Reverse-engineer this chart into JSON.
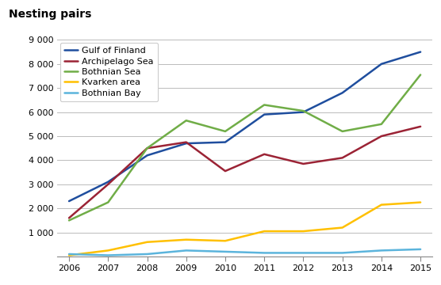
{
  "years": [
    2006,
    2007,
    2008,
    2009,
    2010,
    2011,
    2012,
    2013,
    2014,
    2015
  ],
  "series": {
    "Gulf of Finland": {
      "values": [
        2300,
        3100,
        4200,
        4700,
        4750,
        5900,
        6000,
        6800,
        8000,
        8500
      ],
      "color": "#1f4e9e",
      "linewidth": 1.8
    },
    "Archipelago Sea": {
      "values": [
        1600,
        3000,
        4500,
        4750,
        3550,
        4250,
        3850,
        4100,
        5000,
        5400
      ],
      "color": "#9b2335",
      "linewidth": 1.8
    },
    "Bothnian Sea": {
      "values": [
        1500,
        2250,
        4500,
        5650,
        5200,
        6300,
        6050,
        5200,
        5500,
        7550
      ],
      "color": "#70ad47",
      "linewidth": 1.8
    },
    "Kvarken area": {
      "values": [
        50,
        250,
        600,
        700,
        650,
        1050,
        1050,
        1200,
        2150,
        2250
      ],
      "color": "#ffc000",
      "linewidth": 1.8
    },
    "Bothnian Bay": {
      "values": [
        100,
        50,
        100,
        250,
        200,
        150,
        150,
        150,
        250,
        300
      ],
      "color": "#5bb4dc",
      "linewidth": 1.8
    }
  },
  "title": "Nesting pairs",
  "ylim": [
    0,
    9000
  ],
  "yticks": [
    0,
    1000,
    2000,
    3000,
    4000,
    5000,
    6000,
    7000,
    8000,
    9000
  ],
  "ytick_labels": [
    "",
    "1 000",
    "2 000",
    "3 000",
    "4 000",
    "5 000",
    "6 000",
    "7 000",
    "8 000",
    "9 000"
  ],
  "xticks": [
    2006,
    2007,
    2008,
    2009,
    2010,
    2011,
    2012,
    2013,
    2014,
    2015
  ],
  "background_color": "#ffffff",
  "grid_color": "#bbbbbb",
  "legend_order": [
    "Gulf of Finland",
    "Archipelago Sea",
    "Bothnian Sea",
    "Kvarken area",
    "Bothnian Bay"
  ]
}
